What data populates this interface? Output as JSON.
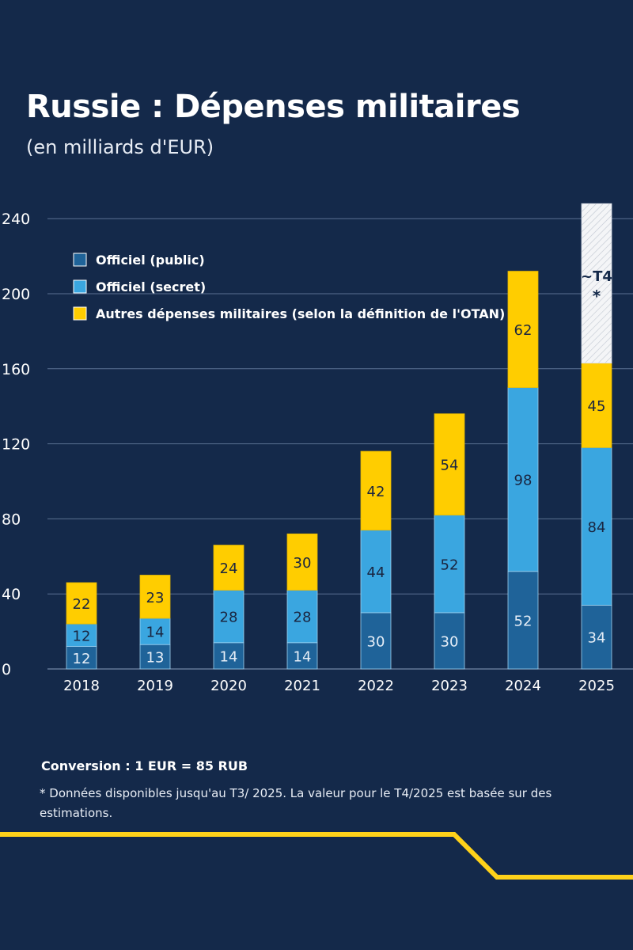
{
  "title": "Russie : Dépenses militaires",
  "subtitle": "(en milliards d'EUR)",
  "colors": {
    "background": "#14294a",
    "public": "#1f6399",
    "secret": "#3aa6e0",
    "other": "#ffcd00",
    "accent_line": "#ffd21a"
  },
  "chart_data": {
    "type": "bar",
    "stacked": true,
    "categories": [
      "2018",
      "2019",
      "2020",
      "2021",
      "2022",
      "2023",
      "2024",
      "2025"
    ],
    "series": [
      {
        "name": "Officiel (public)",
        "values": [
          12,
          13,
          14,
          14,
          30,
          30,
          52,
          34
        ],
        "labels": [
          "12",
          "13",
          "14",
          "14",
          "30",
          "30",
          "52",
          "34"
        ],
        "color_key": "public"
      },
      {
        "name": "Officiel (secret)",
        "values": [
          12,
          14,
          28,
          28,
          44,
          52,
          98,
          84
        ],
        "labels": [
          "12",
          "14",
          "28",
          "28",
          "44",
          "52",
          "98",
          "84"
        ],
        "color_key": "secret"
      },
      {
        "name": "Autres dépenses militaires (selon la définition de l'OTAN)",
        "values": [
          22,
          23,
          24,
          30,
          42,
          54,
          62,
          45
        ],
        "labels": [
          "22",
          "23",
          "24",
          "30",
          "42",
          "54",
          "62",
          "45"
        ],
        "color_key": "other"
      }
    ],
    "estimate": {
      "category": "2025",
      "label": "~T4",
      "marker": "*",
      "top_value": 248
    },
    "yticks": [
      "0",
      "40",
      "80",
      "120",
      "160",
      "200",
      "240"
    ],
    "ylim": [
      0,
      240
    ],
    "legend_position": "top-left",
    "xlabel": "",
    "ylabel": ""
  },
  "footnotes": {
    "conversion": "Conversion : 1 EUR = 85 RUB",
    "star": "* Données disponibles jusqu'au T3/ 2025. La valeur pour le T4/2025 est basée sur des estimations."
  }
}
